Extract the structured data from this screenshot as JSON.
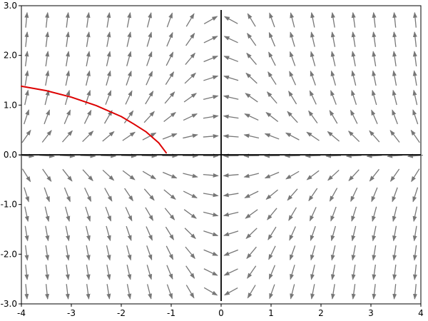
{
  "chart_data": {
    "type": "vector_field",
    "title": "",
    "xlabel": "",
    "ylabel": "",
    "xlim": [
      -4,
      4
    ],
    "ylim": [
      -3,
      3
    ],
    "x_ticks": [
      -4,
      -3,
      -2,
      -1,
      0,
      1,
      2,
      3,
      4
    ],
    "x_tick_labels": [
      "-4",
      "-3",
      "-2",
      "-1",
      "0",
      "1",
      "2",
      "3",
      "4"
    ],
    "y_ticks": [
      -3,
      -2,
      -1,
      0,
      1,
      2,
      3
    ],
    "y_tick_labels": [
      "-3.0",
      "-2.0",
      "-1.0",
      "0.0",
      "1.0",
      "2.0",
      "3.0"
    ],
    "grid": false,
    "field": {
      "description": "slope field dy/dx = -x*y (arrows point right where x<0, left where x>0)",
      "x_start": -3.9,
      "x_step": 0.41,
      "x_count": 20,
      "y_start": -2.75,
      "y_step": 0.39,
      "y_count": 15,
      "color": "#777777"
    },
    "series": [
      {
        "type": "line",
        "color": "#dd0000",
        "x": [
          -4.0,
          -3.5,
          -3.0,
          -2.5,
          -2.0,
          -1.75,
          -1.5,
          -1.25,
          -1.1
        ],
        "y": [
          1.38,
          1.29,
          1.16,
          0.99,
          0.77,
          0.62,
          0.46,
          0.24,
          0.04
        ]
      }
    ],
    "axis_lines": {
      "x_axis_at": 0,
      "y_axis_at": 0,
      "color": "#000000"
    }
  }
}
